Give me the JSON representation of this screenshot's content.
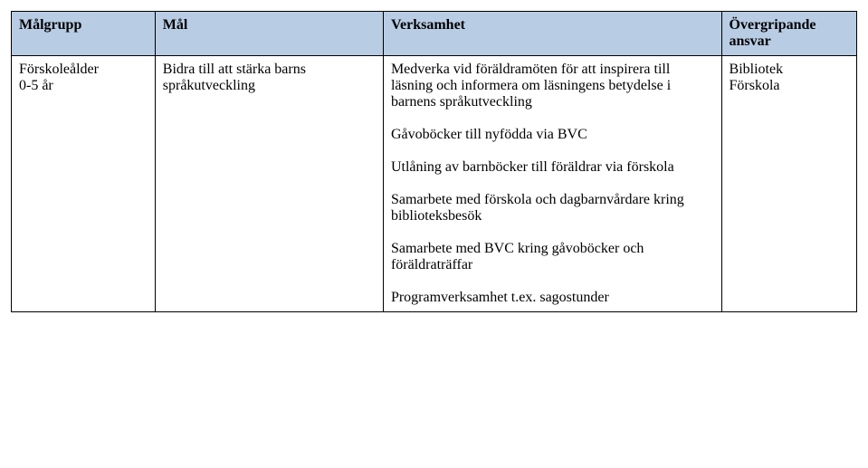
{
  "table": {
    "header_bg": "#b8cce4",
    "border_color": "#000000",
    "font_family": "Times New Roman",
    "font_size_pt": 12,
    "columns": [
      {
        "label": "Målgrupp",
        "width_pct": 17
      },
      {
        "label": "Mål",
        "width_pct": 27
      },
      {
        "label": "Verksamhet",
        "width_pct": 40
      },
      {
        "label": "Övergripande ansvar",
        "width_pct": 16
      }
    ],
    "row": {
      "malgrupp_line1": "Förskoleålder",
      "malgrupp_line2": "0-5 år",
      "mal_line1": "Bidra till att stärka barns",
      "mal_line2": "språkutveckling",
      "verksamhet_blocks": [
        "Medverka vid föräldramöten för att inspirera till läsning och informera om läsningens betydelse i barnens språkutveckling",
        "Gåvoböcker till nyfödda via BVC",
        "Utlåning av barnböcker till föräldrar via förskola",
        "Samarbete med förskola och dagbarnvårdare kring biblioteksbesök",
        "Samarbete med BVC kring gåvoböcker och föräldraträffar",
        "Programverksamhet t.ex. sagostunder"
      ],
      "ansvar_line1": "Bibliotek",
      "ansvar_line2": "Förskola"
    }
  }
}
